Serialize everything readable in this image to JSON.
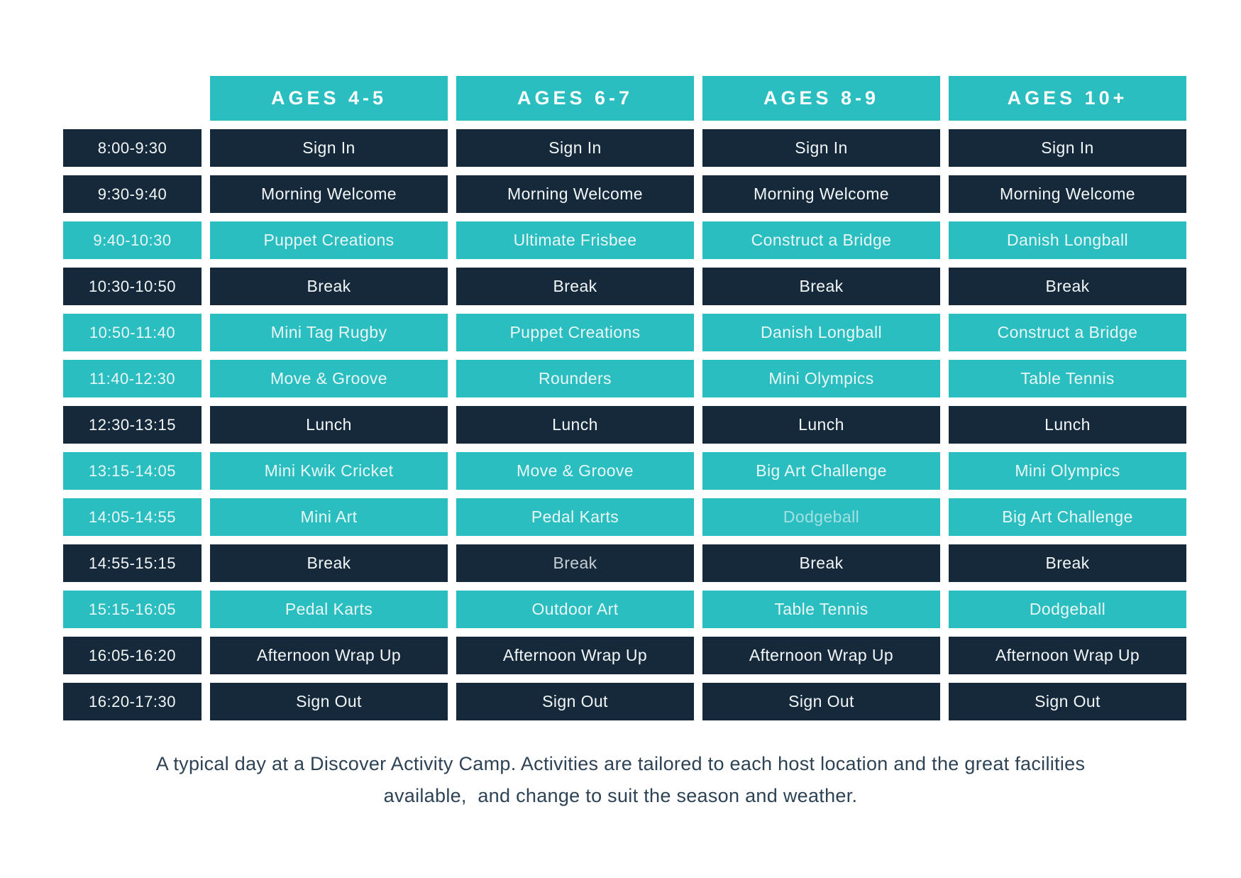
{
  "colors": {
    "background": "#ffffff",
    "teal": "#2bbec0",
    "navy": "#16293a",
    "header_text": "#fdfefe",
    "text_on_teal": "#e8f6f6",
    "text_on_navy": "#f2f6f7",
    "muted_text_on_teal": "#a3e0e2",
    "muted_text_on_navy": "#c6ced5",
    "caption_text": "#2d4254"
  },
  "schedule": {
    "column_headers": [
      "AGES 4-5",
      "AGES 6-7",
      "AGES 8-9",
      "AGES 10+"
    ],
    "rows": [
      {
        "time": "8:00-9:30",
        "style": "navy",
        "cells": [
          "Sign In",
          "Sign In",
          "Sign In",
          "Sign In"
        ]
      },
      {
        "time": "9:30-9:40",
        "style": "navy",
        "cells": [
          "Morning Welcome",
          "Morning Welcome",
          "Morning Welcome",
          "Morning Welcome"
        ]
      },
      {
        "time": "9:40-10:30",
        "style": "teal",
        "cells": [
          "Puppet Creations",
          "Ultimate Frisbee",
          "Construct a Bridge",
          "Danish Longball"
        ]
      },
      {
        "time": "10:30-10:50",
        "style": "navy",
        "cells": [
          "Break",
          "Break",
          "Break",
          "Break"
        ]
      },
      {
        "time": "10:50-11:40",
        "style": "teal",
        "cells": [
          "Mini Tag Rugby",
          "Puppet Creations",
          "Danish Longball",
          "Construct a Bridge"
        ]
      },
      {
        "time": "11:40-12:30",
        "style": "teal",
        "cells": [
          "Move & Groove",
          "Rounders",
          "Mini Olympics",
          "Table Tennis"
        ]
      },
      {
        "time": "12:30-13:15",
        "style": "navy",
        "cells": [
          "Lunch",
          "Lunch",
          "Lunch",
          "Lunch"
        ]
      },
      {
        "time": "13:15-14:05",
        "style": "teal",
        "cells": [
          "Mini Kwik Cricket",
          "Move & Groove",
          "Big Art Challenge",
          "Mini Olympics"
        ]
      },
      {
        "time": "14:05-14:55",
        "style": "teal",
        "cells": [
          "Mini Art",
          "Pedal Karts",
          "Dodgeball",
          "Big Art Challenge"
        ],
        "muted_columns": [
          2
        ]
      },
      {
        "time": "14:55-15:15",
        "style": "navy",
        "cells": [
          "Break",
          "Break",
          "Break",
          "Break"
        ],
        "muted_columns": [
          1
        ]
      },
      {
        "time": "15:15-16:05",
        "style": "teal",
        "cells": [
          "Pedal Karts",
          "Outdoor Art",
          "Table Tennis",
          "Dodgeball"
        ]
      },
      {
        "time": "16:05-16:20",
        "style": "navy",
        "cells": [
          "Afternoon Wrap Up",
          "Afternoon Wrap Up",
          "Afternoon Wrap Up",
          "Afternoon Wrap Up"
        ]
      },
      {
        "time": "16:20-17:30",
        "style": "navy",
        "cells": [
          "Sign Out",
          "Sign Out",
          "Sign Out",
          "Sign Out"
        ]
      }
    ]
  },
  "caption": "A typical day at a Discover Activity Camp. Activities are tailored to each host location and the great facilities available,  and change to suit the season and weather."
}
